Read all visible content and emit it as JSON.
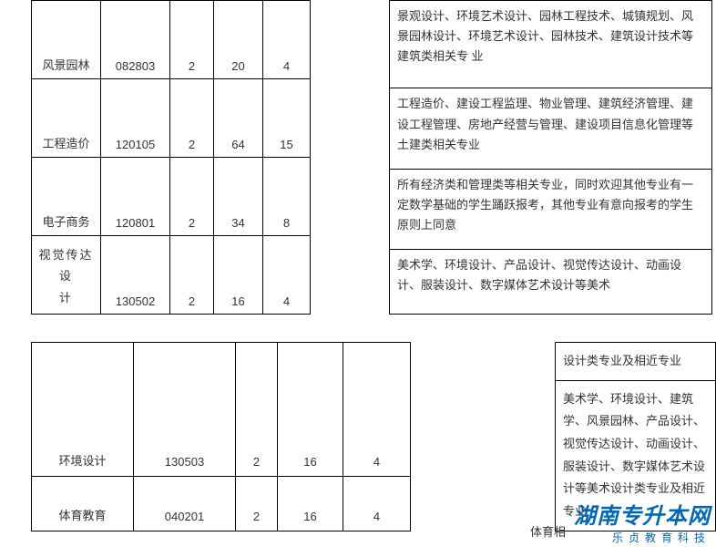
{
  "upper_left_rows": [
    {
      "c1": "风景园林",
      "c2": "082803",
      "c3": "2",
      "c4": "20",
      "c5": "4"
    },
    {
      "c1": "工程造价",
      "c2": "120105",
      "c3": "2",
      "c4": "64",
      "c5": "15"
    },
    {
      "c1": "电子商务",
      "c2": "120801",
      "c3": "2",
      "c4": "34",
      "c5": "8"
    },
    {
      "c1_line1": "视觉传达设",
      "c1_line2": "计",
      "c2": "130502",
      "c3": "2",
      "c4": "16",
      "c5": "4"
    }
  ],
  "upper_right_rows": [
    "景观设计、环境艺术设计、园林工程技术、城镇规划、风景园林设计、环境艺术设计、园林技术、建筑设计技术等建筑类相关专\n业",
    "工程造价、建设工程监理、物业管理、建筑经济管理、建设工程管理、房地产经营与管理、建设项目信息化管理等土建类相关专业",
    "所有经济类和管理类等相关专业，同时欢迎其他专业有一定数学基础的学生踊跃报考，其他专业有意向报考的学生原则上同意",
    "美术学、环境设计、产品设计、视觉传达设计、动画设计、服装设计、数字媒体艺术设计等美术"
  ],
  "lower_left_rows": [
    {
      "c1": "环境设计",
      "c2": "130503",
      "c3": "2",
      "c4": "16",
      "c5": "4"
    },
    {
      "c1": "体育教育",
      "c2": "040201",
      "c3": "2",
      "c4": "16",
      "c5": "4"
    }
  ],
  "lower_right_rows": [
    "设计类专业及相近专业",
    "美术学、环境设计、建筑学、风景园林、产品设计、视觉传达设计、动画设计、服装设计、数字媒体艺术设计等美术设计类专业及相近专业"
  ],
  "partial_label": "体育相",
  "watermark": {
    "title": "湖南专升本网",
    "subtitle": "乐贞教育科技",
    "color": "#0068b7"
  },
  "styling": {
    "font_size": 13,
    "border_color": "#000000",
    "background": "#ffffff",
    "text_color": "#333333"
  }
}
